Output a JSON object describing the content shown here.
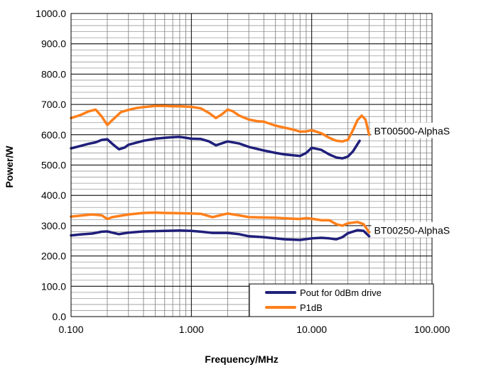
{
  "chart_data": {
    "type": "line",
    "xlabel": "Frequency/MHz",
    "ylabel": "Power/W",
    "x_scale": "log",
    "xlim": [
      0.1,
      100
    ],
    "ylim": [
      0,
      1000
    ],
    "x_ticks": [
      "0.100",
      "1.000",
      "10.000",
      "100.000"
    ],
    "y_ticks": [
      "0.0",
      "100.0",
      "200.0",
      "300.0",
      "400.0",
      "500.0",
      "600.0",
      "700.0",
      "800.0",
      "900.0",
      "1000.0"
    ],
    "grid": true,
    "legend": {
      "placement": "bottom-right",
      "entries": [
        {
          "name": "Pout for 0dBm drive",
          "color": "#1f1f7a"
        },
        {
          "name": "P1dB",
          "color": "#ff7f1a"
        }
      ]
    },
    "annotations": [
      {
        "text": "BT00500-AlphaS",
        "x": 30,
        "y": 612
      },
      {
        "text": "BT00250-AlphaS",
        "x": 30,
        "y": 284
      }
    ],
    "series": [
      {
        "name": "P1dB",
        "group": "BT00500-AlphaS",
        "color": "#ff7f1a",
        "points": [
          [
            0.1,
            655
          ],
          [
            0.12,
            665
          ],
          [
            0.14,
            677
          ],
          [
            0.16,
            683
          ],
          [
            0.18,
            660
          ],
          [
            0.2,
            632
          ],
          [
            0.22,
            648
          ],
          [
            0.26,
            675
          ],
          [
            0.3,
            682
          ],
          [
            0.35,
            688
          ],
          [
            0.4,
            691
          ],
          [
            0.5,
            695
          ],
          [
            0.6,
            695
          ],
          [
            0.7,
            694
          ],
          [
            0.8,
            694
          ],
          [
            0.9,
            693
          ],
          [
            1.0,
            692
          ],
          [
            1.2,
            687
          ],
          [
            1.4,
            672
          ],
          [
            1.6,
            655
          ],
          [
            1.8,
            668
          ],
          [
            2.0,
            683
          ],
          [
            2.2,
            678
          ],
          [
            2.5,
            663
          ],
          [
            3.0,
            650
          ],
          [
            3.5,
            645
          ],
          [
            4.0,
            643
          ],
          [
            5.0,
            630
          ],
          [
            6.0,
            623
          ],
          [
            7.0,
            617
          ],
          [
            8.0,
            610
          ],
          [
            9.0,
            611
          ],
          [
            10.0,
            615
          ],
          [
            12.0,
            605
          ],
          [
            14.0,
            590
          ],
          [
            16.0,
            580
          ],
          [
            18.0,
            578
          ],
          [
            20.0,
            583
          ],
          [
            22.0,
            615
          ],
          [
            24.0,
            648
          ],
          [
            26.0,
            663
          ],
          [
            28.0,
            650
          ],
          [
            30.0,
            600
          ]
        ]
      },
      {
        "name": "Pout for 0dBm drive",
        "group": "BT00500-AlphaS",
        "color": "#1f1f7a",
        "points": [
          [
            0.1,
            555
          ],
          [
            0.12,
            563
          ],
          [
            0.14,
            570
          ],
          [
            0.16,
            575
          ],
          [
            0.18,
            583
          ],
          [
            0.2,
            585
          ],
          [
            0.22,
            570
          ],
          [
            0.25,
            552
          ],
          [
            0.28,
            558
          ],
          [
            0.3,
            567
          ],
          [
            0.4,
            580
          ],
          [
            0.5,
            587
          ],
          [
            0.6,
            590
          ],
          [
            0.7,
            592
          ],
          [
            0.8,
            593
          ],
          [
            0.9,
            590
          ],
          [
            1.0,
            587
          ],
          [
            1.2,
            586
          ],
          [
            1.4,
            578
          ],
          [
            1.6,
            565
          ],
          [
            1.8,
            572
          ],
          [
            2.0,
            578
          ],
          [
            2.5,
            571
          ],
          [
            3.0,
            560
          ],
          [
            4.0,
            548
          ],
          [
            5.0,
            540
          ],
          [
            6.0,
            535
          ],
          [
            7.0,
            532
          ],
          [
            8.0,
            530
          ],
          [
            9.0,
            540
          ],
          [
            10.0,
            557
          ],
          [
            12.0,
            550
          ],
          [
            14.0,
            535
          ],
          [
            16.0,
            525
          ],
          [
            18.0,
            522
          ],
          [
            20.0,
            528
          ],
          [
            22.0,
            545
          ],
          [
            25.0,
            580
          ]
        ]
      },
      {
        "name": "P1dB",
        "group": "BT00250-AlphaS",
        "color": "#ff7f1a",
        "points": [
          [
            0.1,
            330
          ],
          [
            0.12,
            333
          ],
          [
            0.15,
            337
          ],
          [
            0.18,
            334
          ],
          [
            0.2,
            322
          ],
          [
            0.22,
            328
          ],
          [
            0.3,
            337
          ],
          [
            0.4,
            342
          ],
          [
            0.5,
            343
          ],
          [
            0.6,
            342
          ],
          [
            0.8,
            341
          ],
          [
            1.0,
            340
          ],
          [
            1.2,
            339
          ],
          [
            1.5,
            328
          ],
          [
            1.8,
            336
          ],
          [
            2.0,
            340
          ],
          [
            2.5,
            334
          ],
          [
            3.0,
            328
          ],
          [
            4.0,
            327
          ],
          [
            5.0,
            326
          ],
          [
            7.0,
            323
          ],
          [
            8.0,
            322
          ],
          [
            9.0,
            325
          ],
          [
            10.0,
            323
          ],
          [
            12.0,
            318
          ],
          [
            14.0,
            318
          ],
          [
            16.0,
            305
          ],
          [
            18.0,
            300
          ],
          [
            20.0,
            308
          ],
          [
            24.0,
            312
          ],
          [
            27.0,
            305
          ],
          [
            30.0,
            278
          ]
        ]
      },
      {
        "name": "Pout for 0dBm drive",
        "group": "BT00250-AlphaS",
        "color": "#1f1f7a",
        "points": [
          [
            0.1,
            268
          ],
          [
            0.12,
            271
          ],
          [
            0.15,
            274
          ],
          [
            0.18,
            280
          ],
          [
            0.2,
            281
          ],
          [
            0.22,
            277
          ],
          [
            0.25,
            272
          ],
          [
            0.3,
            277
          ],
          [
            0.4,
            281
          ],
          [
            0.6,
            283
          ],
          [
            0.8,
            284
          ],
          [
            1.0,
            283
          ],
          [
            1.2,
            280
          ],
          [
            1.5,
            276
          ],
          [
            2.0,
            276
          ],
          [
            2.5,
            272
          ],
          [
            3.0,
            265
          ],
          [
            4.0,
            262
          ],
          [
            5.0,
            258
          ],
          [
            6.0,
            255
          ],
          [
            8.0,
            253
          ],
          [
            10.0,
            258
          ],
          [
            12.0,
            260
          ],
          [
            14.0,
            258
          ],
          [
            16.0,
            255
          ],
          [
            18.0,
            262
          ],
          [
            20.0,
            275
          ],
          [
            24.0,
            285
          ],
          [
            27.0,
            283
          ],
          [
            30.0,
            265
          ]
        ]
      }
    ]
  }
}
